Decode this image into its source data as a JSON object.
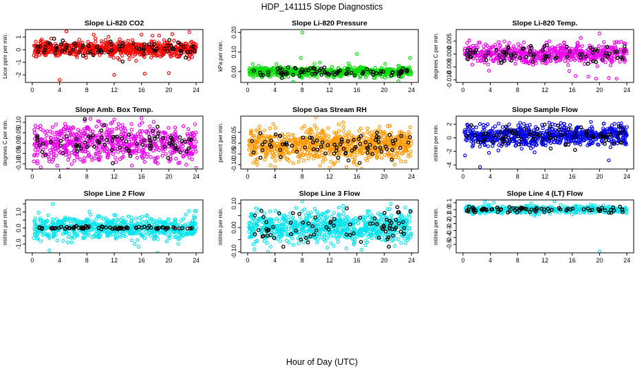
{
  "figure": {
    "title": "HDP_141115  Slope Diagnostics",
    "xlabel": "Hour of Day (UTC)"
  },
  "chart_data": [
    {
      "type": "scatter",
      "title": "Slope Li-820 CO2",
      "ylabel": "Licor ppm per min.",
      "color": "#ff0000",
      "xlim": [
        -1,
        25
      ],
      "ylim": [
        -2.6,
        1.6
      ],
      "xticks": [
        0,
        4,
        8,
        12,
        16,
        20,
        24
      ],
      "yticks": [
        -2,
        -1,
        0,
        1
      ],
      "ytick_labels": [
        "-2",
        "-1",
        "0",
        "1"
      ],
      "center": 0.05,
      "spread": 0.28,
      "n": 700,
      "black_spread": 0.35,
      "outliers": [
        {
          "x": 4,
          "y": -2.4
        },
        {
          "x": 12,
          "y": -2.0
        },
        {
          "x": 20,
          "y": -1.85
        },
        {
          "x": 5,
          "y": 1.45
        },
        {
          "x": 16,
          "y": 1.2
        },
        {
          "x": 23,
          "y": 1.4
        },
        {
          "x": 9,
          "y": 1.2
        }
      ]
    },
    {
      "type": "scatter",
      "title": "Slope Li-820 Pressure",
      "ylabel": "kPa per min.",
      "color": "#00dd00",
      "xlim": [
        -1,
        25
      ],
      "ylim": [
        -0.055,
        0.215
      ],
      "xticks": [
        0,
        4,
        8,
        12,
        16,
        20,
        24
      ],
      "yticks": [
        0.0,
        0.1,
        0.2
      ],
      "ytick_labels": [
        "0.00",
        "0.10",
        "0.20"
      ],
      "center": 0.0,
      "spread": 0.012,
      "n": 600,
      "black_spread": 0.012,
      "outliers": [
        {
          "x": 8,
          "y": 0.2
        },
        {
          "x": 16,
          "y": 0.09
        },
        {
          "x": 23.8,
          "y": 0.07
        },
        {
          "x": 7.8,
          "y": 0.07
        }
      ]
    },
    {
      "type": "scatter",
      "title": "Slope Li-820 Temp.",
      "ylabel": "degrees C per min.",
      "color": "#ee00ee",
      "xlim": [
        -1,
        25
      ],
      "ylim": [
        -0.011,
        0.0095
      ],
      "xticks": [
        0,
        4,
        8,
        12,
        16,
        20,
        24
      ],
      "yticks": [
        -0.01,
        -0.005,
        0.0,
        0.005
      ],
      "ytick_labels": [
        "-0.010",
        "-0.005",
        "0.000",
        "0.005"
      ],
      "center": 0.0,
      "spread": 0.0018,
      "n": 600,
      "black_spread": 0.0015,
      "outliers": [
        {
          "x": 19.5,
          "y": -0.0095
        },
        {
          "x": 22.5,
          "y": -0.0095
        },
        {
          "x": 16.5,
          "y": -0.0085
        },
        {
          "x": 20,
          "y": 0.008
        }
      ]
    },
    {
      "type": "scatter",
      "title": "Slope Amb. Box Temp.",
      "ylabel": "degrees C per min.",
      "color": "#ee00ee",
      "xlim": [
        -1,
        25
      ],
      "ylim": [
        -0.125,
        0.13
      ],
      "xticks": [
        0,
        4,
        8,
        12,
        16,
        20,
        24
      ],
      "yticks": [
        -0.1,
        -0.05,
        0.0,
        0.05,
        0.1
      ],
      "ytick_labels": [
        "-0.10",
        "-0.05",
        "0.00",
        "0.05",
        "0.10"
      ],
      "center": 0.0,
      "spread": 0.045,
      "n": 650,
      "black_spread": 0.035,
      "outliers": [
        {
          "x": 24,
          "y": -0.12
        },
        {
          "x": 16,
          "y": 0.12
        }
      ]
    },
    {
      "type": "scatter",
      "title": "Slope Gas Stream RH",
      "ylabel": "percent per min.",
      "color": "#ff9900",
      "xlim": [
        -1,
        25
      ],
      "ylim": [
        -0.12,
        0.125
      ],
      "xticks": [
        0,
        4,
        8,
        12,
        16,
        20,
        24
      ],
      "yticks": [
        -0.1,
        -0.05,
        0.0,
        0.05
      ],
      "ytick_labels": [
        "-0.10",
        "-0.05",
        "0.00",
        "0.05"
      ],
      "center": -0.01,
      "spread": 0.035,
      "n": 800,
      "black_spread": 0.03,
      "outliers": [
        {
          "x": 10,
          "y": 0.12
        },
        {
          "x": 4,
          "y": -0.11
        },
        {
          "x": 12,
          "y": -0.115
        }
      ]
    },
    {
      "type": "scatter",
      "title": "Slope Sample Flow",
      "ylabel": "ml/min per min.",
      "color": "#0000ee",
      "xlim": [
        -1,
        25
      ],
      "ylim": [
        -4.6,
        3.2
      ],
      "xticks": [
        0,
        4,
        8,
        12,
        16,
        20,
        24
      ],
      "yticks": [
        -4,
        -2,
        0,
        2
      ],
      "ytick_labels": [
        "-4",
        "-2",
        "0",
        "2"
      ],
      "center": 0.3,
      "spread": 0.7,
      "n": 700,
      "black_spread": 0.9,
      "outliers": [
        {
          "x": 2.5,
          "y": -4.3
        },
        {
          "x": 0.3,
          "y": -2.6
        },
        {
          "x": 24,
          "y": 1.6
        }
      ]
    },
    {
      "type": "scatter",
      "title": "Slope Line 2 Flow",
      "ylabel": "ml/min per min.",
      "color": "#00e5ee",
      "xlim": [
        -1,
        25
      ],
      "ylim": [
        -1.55,
        1.75
      ],
      "xticks": [
        0,
        4,
        8,
        12,
        16,
        20,
        24
      ],
      "yticks": [
        -1.0,
        -0.5,
        0.0,
        0.5,
        1.0,
        1.5
      ],
      "ytick_labels": [
        "-1.0",
        "0.0",
        "1.0"
      ],
      "center": 0.0,
      "spread": 0.32,
      "n": 650,
      "black_spread": 0.05,
      "outliers": [
        {
          "x": 2.5,
          "y": -1.4
        },
        {
          "x": 3,
          "y": 1.5
        },
        {
          "x": 24,
          "y": 1.05
        },
        {
          "x": 15,
          "y": -1.0
        }
      ]
    },
    {
      "type": "scatter",
      "title": "Slope Line 3 Flow",
      "ylabel": "ml/min per min.",
      "color": "#00e5ee",
      "xlim": [
        -1,
        25
      ],
      "ylim": [
        -0.105,
        0.115
      ],
      "xticks": [
        0,
        4,
        8,
        12,
        16,
        20,
        24
      ],
      "yticks": [
        -0.1,
        -0.05,
        0.0,
        0.05,
        0.1
      ],
      "ytick_labels": [
        "-0.10",
        "0.00",
        "0.10"
      ],
      "center": 0.0,
      "spread": 0.03,
      "n": 750,
      "black_spread": 0.035,
      "outliers": [
        {
          "x": 8,
          "y": 0.11
        },
        {
          "x": 1,
          "y": -0.09
        },
        {
          "x": 3,
          "y": -0.1
        }
      ]
    },
    {
      "type": "scatter",
      "title": "Slope Line 4 (LT) Flow",
      "ylabel": "ml/min per min.",
      "color": "#00e5ee",
      "xlim": [
        -1,
        25
      ],
      "ylim": [
        -0.62,
        0.14
      ],
      "xticks": [
        0,
        4,
        8,
        12,
        16,
        20,
        24
      ],
      "yticks": [
        -0.5,
        -0.4,
        -0.3,
        -0.2,
        -0.1,
        0.0,
        0.1
      ],
      "ytick_labels": [
        "-0.5",
        "-0.4",
        "-0.3",
        "-0.2",
        "-0.1",
        "0.0",
        "0.1"
      ],
      "center": 0.0,
      "spread": 0.025,
      "n": 450,
      "black_spread": 0.02,
      "outliers": [
        {
          "x": 20,
          "y": -0.6
        },
        {
          "x": 4.5,
          "y": 0.1
        }
      ]
    }
  ]
}
